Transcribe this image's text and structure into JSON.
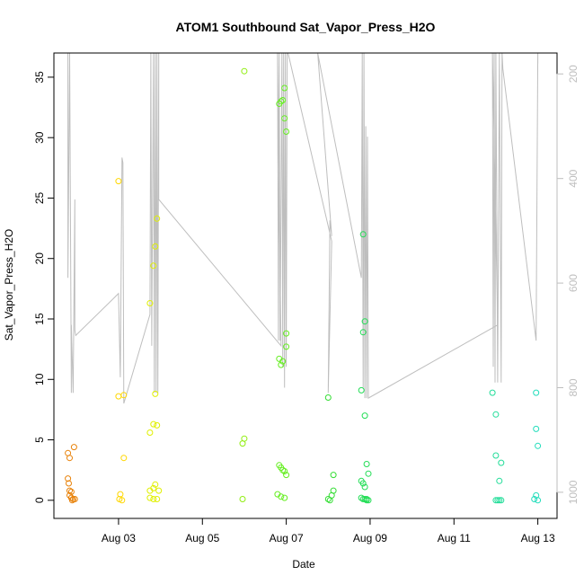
{
  "chart_data": {
    "type": "scatter",
    "title": "ATOM1 Southbound Sat_Vapor_Press_H2O",
    "xlabel": "Date",
    "ylabel": "Sat_Vapor_Press_H2O",
    "x_ticks": [
      "Aug 03",
      "Aug 05",
      "Aug 07",
      "Aug 09",
      "Aug 11",
      "Aug 13"
    ],
    "y_ticks": [
      "0",
      "5",
      "10",
      "15",
      "20",
      "25",
      "30",
      "35"
    ],
    "y2_ticks": [
      "200",
      "400",
      "600",
      "800",
      "1000"
    ],
    "xlim": [
      "2016-08-01T11:00",
      "2016-08-13T11:00"
    ],
    "ylim": [
      -1.5,
      37
    ],
    "y2lim": [
      1050,
      160
    ],
    "grid": false,
    "legend": "none",
    "colors": {
      "axis": "#000000",
      "axis2": "#bebebe",
      "pressure_line": "#bebebe"
    },
    "series": [
      {
        "color": "#e8820a",
        "points": [
          {
            "x": "2016-08-01T19:00",
            "y": 3.9
          },
          {
            "x": "2016-08-01T20:00",
            "y": 3.5
          },
          {
            "x": "2016-08-01T19:00",
            "y": 1.8
          },
          {
            "x": "2016-08-01T19:30",
            "y": 1.4
          },
          {
            "x": "2016-08-01T20:00",
            "y": 0.8
          },
          {
            "x": "2016-08-01T21:00",
            "y": 0.7
          },
          {
            "x": "2016-08-01T20:00",
            "y": 0.4
          },
          {
            "x": "2016-08-01T21:00",
            "y": 0.2
          },
          {
            "x": "2016-08-01T22:00",
            "y": 0.1
          },
          {
            "x": "2016-08-01T23:00",
            "y": 0.1
          },
          {
            "x": "2016-08-01T22:30",
            "y": 4.4
          },
          {
            "x": "2016-08-01T21:30",
            "y": 0.0
          }
        ]
      },
      {
        "color": "#ffd700",
        "points": [
          {
            "x": "2016-08-03T00:00",
            "y": 26.4
          },
          {
            "x": "2016-08-03T00:00",
            "y": 8.6
          },
          {
            "x": "2016-08-03T03:00",
            "y": 8.7
          },
          {
            "x": "2016-08-03T03:00",
            "y": 3.5
          },
          {
            "x": "2016-08-03T01:00",
            "y": 0.5
          },
          {
            "x": "2016-08-03T00:30",
            "y": 0.1
          },
          {
            "x": "2016-08-03T02:00",
            "y": 0.0
          }
        ]
      },
      {
        "color": "#e0f000",
        "points": [
          {
            "x": "2016-08-03T22:00",
            "y": 23.3
          },
          {
            "x": "2016-08-03T21:00",
            "y": 21.0
          },
          {
            "x": "2016-08-03T20:00",
            "y": 19.4
          },
          {
            "x": "2016-08-03T18:00",
            "y": 16.3
          },
          {
            "x": "2016-08-03T21:00",
            "y": 8.8
          },
          {
            "x": "2016-08-03T20:00",
            "y": 6.3
          },
          {
            "x": "2016-08-03T22:00",
            "y": 6.2
          },
          {
            "x": "2016-08-03T18:00",
            "y": 5.6
          },
          {
            "x": "2016-08-03T21:00",
            "y": 1.3
          },
          {
            "x": "2016-08-03T20:00",
            "y": 1.0
          },
          {
            "x": "2016-08-03T18:00",
            "y": 0.8
          },
          {
            "x": "2016-08-03T23:00",
            "y": 0.8
          },
          {
            "x": "2016-08-03T18:00",
            "y": 0.2
          },
          {
            "x": "2016-08-03T20:00",
            "y": 0.1
          },
          {
            "x": "2016-08-03T22:00",
            "y": 0.1
          }
        ]
      },
      {
        "color": "#90ee10",
        "points": [
          {
            "x": "2016-08-06T00:00",
            "y": 35.5
          },
          {
            "x": "2016-08-06T00:00",
            "y": 5.1
          },
          {
            "x": "2016-08-05T23:00",
            "y": 4.7
          },
          {
            "x": "2016-08-05T23:00",
            "y": 0.1
          }
        ]
      },
      {
        "color": "#66ee22",
        "points": [
          {
            "x": "2016-08-06T20:00",
            "y": 32.8
          },
          {
            "x": "2016-08-06T21:00",
            "y": 33.0
          },
          {
            "x": "2016-08-06T22:00",
            "y": 33.1
          },
          {
            "x": "2016-08-06T23:00",
            "y": 34.1
          },
          {
            "x": "2016-08-06T23:00",
            "y": 31.6
          },
          {
            "x": "2016-08-07T00:00",
            "y": 30.5
          },
          {
            "x": "2016-08-07T00:00",
            "y": 13.8
          },
          {
            "x": "2016-08-07T00:00",
            "y": 12.7
          },
          {
            "x": "2016-08-06T20:00",
            "y": 11.7
          },
          {
            "x": "2016-08-06T21:00",
            "y": 11.2
          },
          {
            "x": "2016-08-06T22:00",
            "y": 11.5
          },
          {
            "x": "2016-08-06T20:00",
            "y": 2.9
          },
          {
            "x": "2016-08-06T21:00",
            "y": 2.7
          },
          {
            "x": "2016-08-06T22:00",
            "y": 2.5
          },
          {
            "x": "2016-08-06T23:00",
            "y": 2.4
          },
          {
            "x": "2016-08-07T00:00",
            "y": 2.1
          },
          {
            "x": "2016-08-06T19:00",
            "y": 0.5
          },
          {
            "x": "2016-08-06T21:00",
            "y": 0.3
          },
          {
            "x": "2016-08-06T23:00",
            "y": 0.2
          }
        ]
      },
      {
        "color": "#33dd33",
        "points": [
          {
            "x": "2016-08-08T00:00",
            "y": 8.5
          },
          {
            "x": "2016-08-08T03:00",
            "y": 2.1
          },
          {
            "x": "2016-08-08T03:00",
            "y": 0.8
          },
          {
            "x": "2016-08-08T02:00",
            "y": 0.4
          },
          {
            "x": "2016-08-08T00:00",
            "y": 0.1
          },
          {
            "x": "2016-08-08T01:00",
            "y": 0.0
          }
        ]
      },
      {
        "color": "#22dd55",
        "points": [
          {
            "x": "2016-08-08T20:00",
            "y": 22.0
          },
          {
            "x": "2016-08-08T21:00",
            "y": 14.8
          },
          {
            "x": "2016-08-08T20:00",
            "y": 13.9
          },
          {
            "x": "2016-08-08T19:00",
            "y": 9.1
          },
          {
            "x": "2016-08-08T21:00",
            "y": 7.0
          },
          {
            "x": "2016-08-08T22:00",
            "y": 3.0
          },
          {
            "x": "2016-08-08T23:00",
            "y": 2.2
          },
          {
            "x": "2016-08-08T19:00",
            "y": 1.6
          },
          {
            "x": "2016-08-08T20:00",
            "y": 1.4
          },
          {
            "x": "2016-08-08T21:00",
            "y": 1.1
          },
          {
            "x": "2016-08-08T19:00",
            "y": 0.2
          },
          {
            "x": "2016-08-08T20:00",
            "y": 0.1
          },
          {
            "x": "2016-08-08T21:00",
            "y": 0.1
          },
          {
            "x": "2016-08-08T22:00",
            "y": 0.1
          },
          {
            "x": "2016-08-08T23:00",
            "y": 0.0
          },
          {
            "x": "2016-08-08T22:00",
            "y": 0.0
          }
        ]
      },
      {
        "color": "#22dd99",
        "points": [
          {
            "x": "2016-08-11T22:00",
            "y": 8.9
          },
          {
            "x": "2016-08-12T00:00",
            "y": 7.1
          },
          {
            "x": "2016-08-12T00:00",
            "y": 3.7
          },
          {
            "x": "2016-08-12T03:00",
            "y": 3.1
          },
          {
            "x": "2016-08-12T02:00",
            "y": 1.6
          },
          {
            "x": "2016-08-12T00:00",
            "y": 0.0
          },
          {
            "x": "2016-08-12T01:00",
            "y": 0.0
          },
          {
            "x": "2016-08-12T02:00",
            "y": 0.0
          },
          {
            "x": "2016-08-12T03:00",
            "y": 0.0
          }
        ]
      },
      {
        "color": "#22ddbb",
        "points": [
          {
            "x": "2016-08-12T23:00",
            "y": 8.9
          },
          {
            "x": "2016-08-12T23:00",
            "y": 5.9
          },
          {
            "x": "2016-08-13T00:00",
            "y": 4.5
          },
          {
            "x": "2016-08-12T23:00",
            "y": 0.4
          },
          {
            "x": "2016-08-12T22:00",
            "y": 0.1
          },
          {
            "x": "2016-08-13T00:00",
            "y": 0.0
          }
        ]
      }
    ],
    "pressure_line": [
      {
        "x": "2016-08-01T19:00",
        "p": 160
      },
      {
        "x": "2016-08-01T19:00",
        "p": 590
      },
      {
        "x": "2016-08-01T20:00",
        "p": 160
      },
      {
        "x": "2016-08-01T21:00",
        "p": 810
      },
      {
        "x": "2016-08-01T21:00",
        "p": 680
      },
      {
        "x": "2016-08-01T22:00",
        "p": 810
      },
      {
        "x": "2016-08-01T23:00",
        "p": 440
      },
      {
        "x": "2016-08-01T23:00",
        "p": 690
      },
      {
        "x": "2016-08-01T23:30",
        "p": 700
      },
      {
        "x": "2016-08-03T00:00",
        "p": 620
      },
      {
        "x": "2016-08-03T01:00",
        "p": 780
      },
      {
        "x": "2016-08-03T02:00",
        "p": 360
      },
      {
        "x": "2016-08-03T02:30",
        "p": 370
      },
      {
        "x": "2016-08-03T03:00",
        "p": 830
      },
      {
        "x": "2016-08-03T18:00",
        "p": 660
      },
      {
        "x": "2016-08-03T18:30",
        "p": 160
      },
      {
        "x": "2016-08-03T19:00",
        "p": 720
      },
      {
        "x": "2016-08-03T20:00",
        "p": 160
      },
      {
        "x": "2016-08-03T20:30",
        "p": 810
      },
      {
        "x": "2016-08-03T21:00",
        "p": 160
      },
      {
        "x": "2016-08-03T21:30",
        "p": 810
      },
      {
        "x": "2016-08-03T22:00",
        "p": 160
      },
      {
        "x": "2016-08-03T22:30",
        "p": 810
      },
      {
        "x": "2016-08-03T23:00",
        "p": 160
      },
      {
        "x": "2016-08-03T23:00",
        "p": 440
      },
      {
        "x": "2016-08-06T21:00",
        "p": 720
      },
      {
        "x": "2016-08-06T19:00",
        "p": 160
      },
      {
        "x": "2016-08-06T19:30",
        "p": 710
      },
      {
        "x": "2016-08-06T20:00",
        "p": 160
      },
      {
        "x": "2016-08-06T20:30",
        "p": 710
      },
      {
        "x": "2016-08-06T21:30",
        "p": 160
      },
      {
        "x": "2016-08-06T22:00",
        "p": 760
      },
      {
        "x": "2016-08-06T22:30",
        "p": 160
      },
      {
        "x": "2016-08-06T23:00",
        "p": 800
      },
      {
        "x": "2016-08-06T23:30",
        "p": 160
      },
      {
        "x": "2016-08-07T00:00",
        "p": 760
      },
      {
        "x": "2016-08-07T00:30",
        "p": 160
      },
      {
        "x": "2016-08-07T01:00",
        "p": 160
      },
      {
        "x": "2016-08-08T02:00",
        "p": 520
      },
      {
        "x": "2016-08-08T00:00",
        "p": 810
      },
      {
        "x": "2016-08-08T01:00",
        "p": 480
      },
      {
        "x": "2016-08-08T02:00",
        "p": 510
      },
      {
        "x": "2016-08-07T18:00",
        "p": 160
      },
      {
        "x": "2016-08-08T19:00",
        "p": 590
      },
      {
        "x": "2016-08-08T19:30",
        "p": 160
      },
      {
        "x": "2016-08-08T20:00",
        "p": 800
      },
      {
        "x": "2016-08-08T20:30",
        "p": 160
      },
      {
        "x": "2016-08-08T21:00",
        "p": 820
      },
      {
        "x": "2016-08-08T21:30",
        "p": 300
      },
      {
        "x": "2016-08-08T22:00",
        "p": 820
      },
      {
        "x": "2016-08-08T22:30",
        "p": 320
      },
      {
        "x": "2016-08-08T23:00",
        "p": 820
      },
      {
        "x": "2016-08-12T01:00",
        "p": 680
      },
      {
        "x": "2016-08-11T22:00",
        "p": 160
      },
      {
        "x": "2016-08-11T22:30",
        "p": 760
      },
      {
        "x": "2016-08-11T23:00",
        "p": 160
      },
      {
        "x": "2016-08-11T23:30",
        "p": 790
      },
      {
        "x": "2016-08-12T00:00",
        "p": 160
      },
      {
        "x": "2016-08-12T01:00",
        "p": 790
      },
      {
        "x": "2016-08-12T02:00",
        "p": 160
      },
      {
        "x": "2016-08-12T03:00",
        "p": 790
      },
      {
        "x": "2016-08-12T03:30",
        "p": 160
      },
      {
        "x": "2016-08-12T04:00",
        "p": 190
      },
      {
        "x": "2016-08-12T23:00",
        "p": 710
      },
      {
        "x": "2016-08-13T00:00",
        "p": 160
      },
      {
        "x": "2016-08-13T00:00",
        "p": 180
      }
    ]
  }
}
